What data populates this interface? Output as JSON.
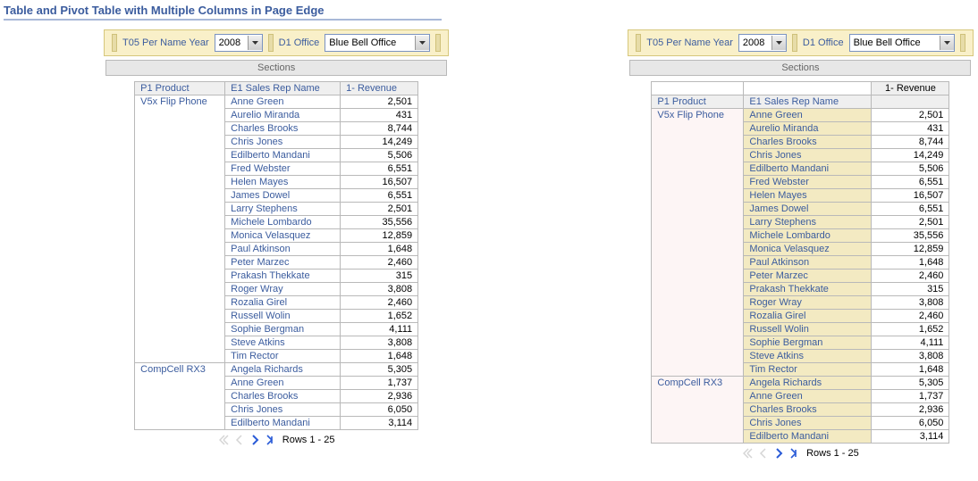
{
  "title": "Table and Pivot Table with Multiple Columns in Page Edge",
  "prompt": {
    "year_label": "T05 Per Name Year",
    "year_value": "2008",
    "office_label": "D1 Office",
    "office_value": "Blue Bell Office"
  },
  "sections_label": "Sections",
  "headers": {
    "product": "P1 Product",
    "rep": "E1 Sales Rep Name",
    "revenue": "1- Revenue"
  },
  "groups": [
    {
      "product": "V5x Flip Phone",
      "rows": [
        {
          "rep": "Anne Green",
          "rev": "2,501"
        },
        {
          "rep": "Aurelio Miranda",
          "rev": "431"
        },
        {
          "rep": "Charles Brooks",
          "rev": "8,744"
        },
        {
          "rep": "Chris Jones",
          "rev": "14,249"
        },
        {
          "rep": "Edilberto Mandani",
          "rev": "5,506"
        },
        {
          "rep": "Fred Webster",
          "rev": "6,551"
        },
        {
          "rep": "Helen Mayes",
          "rev": "16,507"
        },
        {
          "rep": "James Dowel",
          "rev": "6,551"
        },
        {
          "rep": "Larry Stephens",
          "rev": "2,501"
        },
        {
          "rep": "Michele Lombardo",
          "rev": "35,556"
        },
        {
          "rep": "Monica Velasquez",
          "rev": "12,859"
        },
        {
          "rep": "Paul Atkinson",
          "rev": "1,648"
        },
        {
          "rep": "Peter Marzec",
          "rev": "2,460"
        },
        {
          "rep": "Prakash Thekkate",
          "rev": "315"
        },
        {
          "rep": "Roger Wray",
          "rev": "3,808"
        },
        {
          "rep": "Rozalia Girel",
          "rev": "2,460"
        },
        {
          "rep": "Russell Wolin",
          "rev": "1,652"
        },
        {
          "rep": "Sophie Bergman",
          "rev": "4,111"
        },
        {
          "rep": "Steve Atkins",
          "rev": "3,808"
        },
        {
          "rep": "Tim Rector",
          "rev": "1,648"
        }
      ]
    },
    {
      "product": "CompCell RX3",
      "rows": [
        {
          "rep": "Angela Richards",
          "rev": "5,305"
        },
        {
          "rep": "Anne Green",
          "rev": "1,737"
        },
        {
          "rep": "Charles Brooks",
          "rev": "2,936"
        },
        {
          "rep": "Chris Jones",
          "rev": "6,050"
        },
        {
          "rep": "Edilberto Mandani",
          "rev": "3,114"
        }
      ]
    }
  ],
  "pager": {
    "text": "Rows 1 - 25"
  },
  "col_widths": {
    "left_product": 88,
    "left_rep": 116,
    "left_rev": 74,
    "right_product": 90,
    "right_rep": 130,
    "right_rev": 74
  },
  "colors": {
    "link": "#3b5c9e",
    "prompt_bg": "#f9f0c9",
    "prompt_border": "#d6c77b",
    "pivot_rep_bg": "#f3eac2",
    "pivot_prod_bg": "#fdf5f5",
    "section_bg": "#e7e7e7"
  }
}
